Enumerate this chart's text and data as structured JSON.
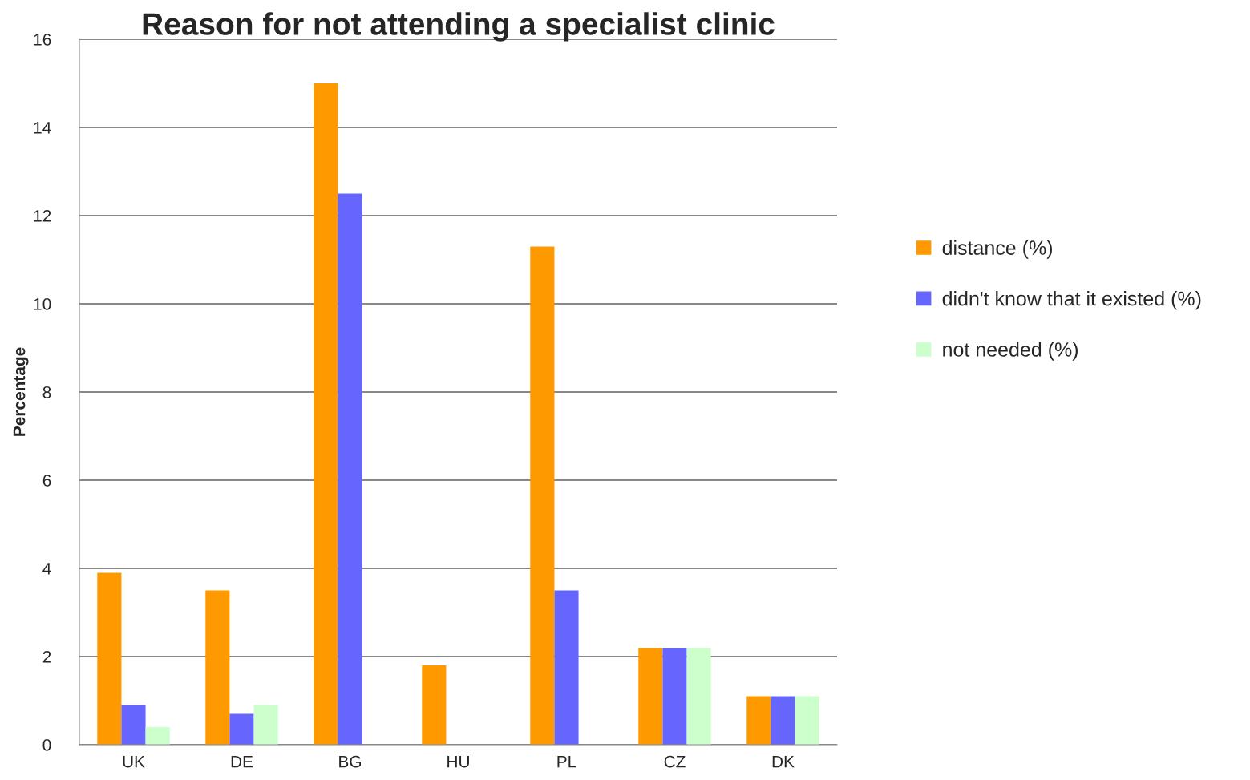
{
  "chart_data": {
    "type": "bar",
    "title": "Reason for not attending a specialist clinic",
    "ylabel": "Percentage",
    "categories": [
      "UK",
      "DE",
      "BG",
      "HU",
      "PL",
      "CZ",
      "DK"
    ],
    "series": [
      {
        "name": "distance (%)",
        "color": "#ff9900",
        "values": [
          3.9,
          3.5,
          15,
          1.8,
          11.3,
          2.2,
          1.1
        ]
      },
      {
        "name": "didn't know that it existed (%)",
        "color": "#6666ff",
        "values": [
          0.9,
          0.7,
          12.5,
          0,
          3.5,
          2.2,
          1.1
        ]
      },
      {
        "name": "not needed (%)",
        "color": "#ccffcc",
        "values": [
          0.4,
          0.9,
          0,
          0,
          0,
          2.2,
          1.1
        ]
      }
    ],
    "ylim": [
      0,
      16
    ],
    "yticks": [
      0,
      2,
      4,
      6,
      8,
      10,
      12,
      14,
      16
    ],
    "grid": "y",
    "legend": "right"
  }
}
